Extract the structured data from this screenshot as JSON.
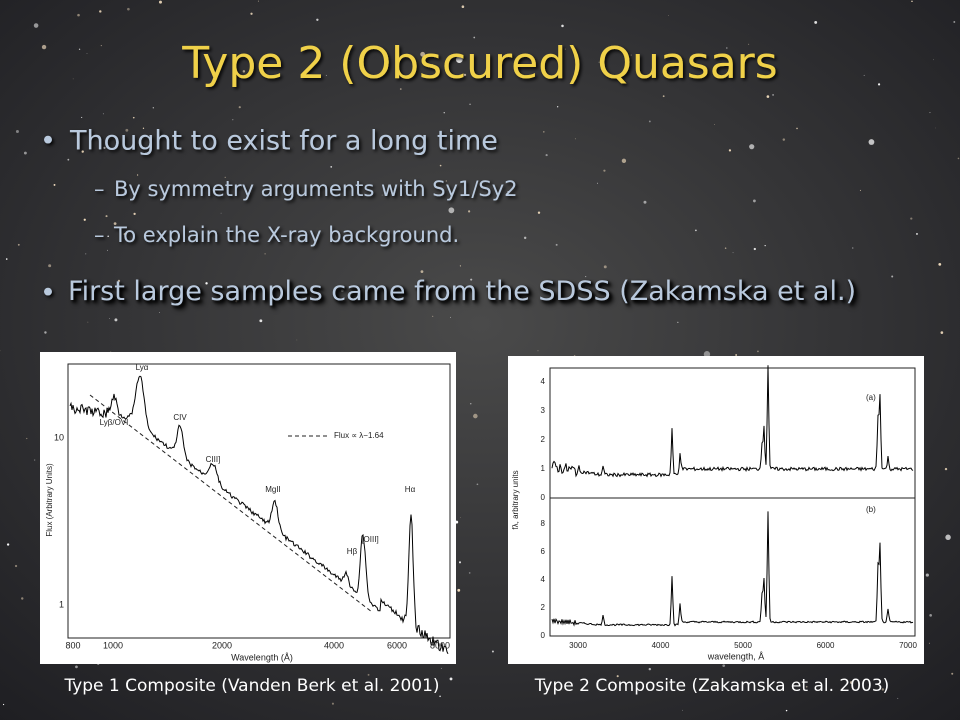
{
  "slide": {
    "title": "Type 2 (Obscured) Quasars",
    "bullets": [
      {
        "text": "Thought to exist for a long time",
        "sub": [
          "By symmetry arguments with Sy1/Sy2",
          "To explain the X-ray background."
        ]
      },
      {
        "text": "First large samples came from the SDSS (Zakamska et al.)",
        "sub": []
      }
    ]
  },
  "figures": [
    {
      "caption": "Type 1 Composite (Vanden Berk et al. 2001)",
      "xlabel": "Wavelength (Å)",
      "ylabel": "Flux (Arbitrary Units)",
      "xticks": [
        "800",
        "1000",
        "2000",
        "4000",
        "6000",
        "8000"
      ],
      "yticks": [
        "10",
        "1"
      ],
      "legend": "Flux ∝ λ−1.64",
      "lines": [
        "Lyα",
        "Lyβ/OVI",
        "CIV",
        "CIII]",
        "MgII",
        "Hβ",
        "[OIII]",
        "Hα"
      ]
    },
    {
      "caption": "Type 2 Composite (Zakamska et al. 2003)",
      "xlabel": "wavelength, Å",
      "ylabel": "fλ, arbitrary units",
      "xticks": [
        "3000",
        "4000",
        "5000",
        "6000",
        "7000"
      ],
      "panels": [
        {
          "label": "(a)",
          "yticks": [
            "0",
            "1",
            "2",
            "3",
            "4"
          ]
        },
        {
          "label": "(b)",
          "yticks": [
            "0",
            "2",
            "4",
            "6",
            "8"
          ]
        }
      ]
    }
  ]
}
